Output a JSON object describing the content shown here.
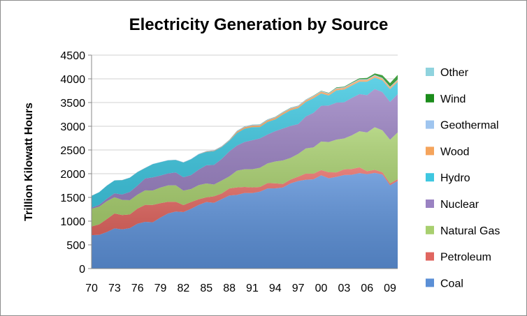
{
  "chart_data": {
    "type": "area",
    "stacked": true,
    "title": "Electricity Generation by Source",
    "xlabel": "",
    "ylabel": "Trillion Kilowatt Hours",
    "ylim": [
      0,
      4500
    ],
    "yticks": [
      0,
      500,
      1000,
      1500,
      2000,
      2500,
      3000,
      3500,
      4000,
      4500
    ],
    "x": [
      1970,
      1971,
      1972,
      1973,
      1974,
      1975,
      1976,
      1977,
      1978,
      1979,
      1980,
      1981,
      1982,
      1983,
      1984,
      1985,
      1986,
      1987,
      1988,
      1989,
      1990,
      1991,
      1992,
      1993,
      1994,
      1995,
      1996,
      1997,
      1998,
      1999,
      2000,
      2001,
      2002,
      2003,
      2004,
      2005,
      2006,
      2007,
      2008,
      2009,
      2010
    ],
    "xtick_labels": [
      "70",
      "73",
      "76",
      "79",
      "82",
      "85",
      "88",
      "91",
      "94",
      "97",
      "00",
      "03",
      "06",
      "09"
    ],
    "xtick_years": [
      1970,
      1973,
      1976,
      1979,
      1982,
      1985,
      1988,
      1991,
      1994,
      1997,
      2000,
      2003,
      2006,
      2009
    ],
    "legend_position": "right",
    "series": [
      {
        "name": "Coal",
        "color": "#5b8fd6",
        "values": [
          704,
          712,
          771,
          848,
          828,
          853,
          944,
          985,
          976,
          1075,
          1162,
          1203,
          1192,
          1259,
          1342,
          1402,
          1386,
          1464,
          1541,
          1554,
          1594,
          1591,
          1621,
          1690,
          1691,
          1709,
          1796,
          1845,
          1874,
          1882,
          1966,
          1904,
          1933,
          1973,
          1978,
          2013,
          1990,
          2016,
          1986,
          1756,
          1847
        ]
      },
      {
        "name": "Petroleum",
        "color": "#e06660",
        "values": [
          184,
          220,
          274,
          314,
          301,
          289,
          320,
          358,
          365,
          303,
          246,
          206,
          147,
          144,
          120,
          100,
          137,
          118,
          149,
          158,
          126,
          120,
          100,
          113,
          106,
          75,
          81,
          93,
          129,
          118,
          111,
          125,
          95,
          119,
          121,
          122,
          64,
          66,
          46,
          39,
          37
        ]
      },
      {
        "name": "Natural Gas",
        "color": "#a8cf6f",
        "values": [
          373,
          374,
          376,
          341,
          320,
          300,
          295,
          306,
          305,
          329,
          346,
          346,
          305,
          274,
          297,
          292,
          249,
          273,
          253,
          352,
          373,
          382,
          404,
          414,
          460,
          496,
          455,
          479,
          531,
          556,
          601,
          639,
          691,
          650,
          710,
          761,
          816,
          897,
          883,
          921,
          988
        ]
      },
      {
        "name": "Nuclear",
        "color": "#9a82c2",
        "values": [
          22,
          38,
          54,
          83,
          114,
          173,
          191,
          251,
          276,
          255,
          251,
          273,
          283,
          294,
          328,
          384,
          414,
          455,
          527,
          529,
          577,
          613,
          619,
          610,
          640,
          673,
          675,
          629,
          674,
          728,
          754,
          769,
          780,
          764,
          789,
          782,
          787,
          806,
          806,
          799,
          807
        ]
      },
      {
        "name": "Hydro",
        "color": "#3fc7e0",
        "values": [
          251,
          266,
          273,
          272,
          301,
          300,
          284,
          220,
          280,
          280,
          276,
          261,
          309,
          332,
          321,
          281,
          290,
          250,
          223,
          265,
          279,
          276,
          240,
          265,
          247,
          296,
          331,
          337,
          304,
          307,
          260,
          211,
          258,
          267,
          260,
          262,
          282,
          241,
          248,
          269,
          257
        ]
      },
      {
        "name": "Wood",
        "color": "#f5a45c",
        "values": [
          1,
          1,
          1,
          1,
          1,
          1,
          1,
          1,
          1,
          1,
          1,
          1,
          1,
          1,
          1,
          9,
          9,
          9,
          10,
          30,
          32,
          33,
          35,
          35,
          36,
          36,
          36,
          36,
          36,
          37,
          37,
          35,
          38,
          37,
          38,
          38,
          38,
          39,
          37,
          36,
          37
        ]
      },
      {
        "name": "Geothermal",
        "color": "#9fc5ef",
        "values": [
          1,
          1,
          2,
          2,
          3,
          3,
          4,
          4,
          3,
          4,
          5,
          5,
          5,
          6,
          8,
          9,
          10,
          11,
          11,
          14,
          15,
          16,
          16,
          16,
          15,
          13,
          14,
          14,
          14,
          14,
          14,
          14,
          14,
          14,
          15,
          15,
          15,
          15,
          15,
          15,
          15
        ]
      },
      {
        "name": "Wind",
        "color": "#1b8c1b",
        "values": [
          0,
          0,
          0,
          0,
          0,
          0,
          0,
          0,
          0,
          0,
          0,
          0,
          0,
          0,
          0,
          0,
          0,
          0,
          1,
          2,
          3,
          3,
          3,
          3,
          3,
          3,
          3,
          3,
          3,
          5,
          6,
          7,
          10,
          11,
          14,
          18,
          27,
          34,
          55,
          74,
          95
        ]
      },
      {
        "name": "Other",
        "color": "#8fd3de",
        "values": [
          0,
          0,
          0,
          0,
          0,
          0,
          0,
          0,
          0,
          0,
          0,
          0,
          0,
          0,
          0,
          0,
          0,
          0,
          0,
          0,
          0,
          0,
          0,
          0,
          0,
          0,
          0,
          0,
          0,
          0,
          0,
          0,
          0,
          0,
          0,
          0,
          0,
          0,
          0,
          0,
          0
        ]
      }
    ],
    "legend_order": [
      "Other",
      "Wind",
      "Geothermal",
      "Wood",
      "Hydro",
      "Nuclear",
      "Natural Gas",
      "Petroleum",
      "Coal"
    ]
  }
}
